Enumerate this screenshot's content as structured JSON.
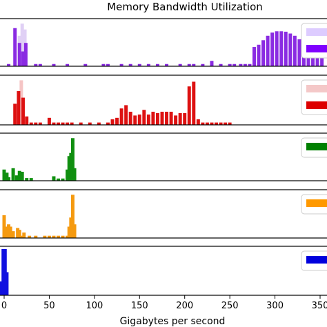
{
  "chart_data": {
    "type": "bar",
    "title": "Memory Bandwidth Utilization",
    "xlabel": "Gigabytes per second",
    "ylabel": "",
    "xlim": [
      -5,
      355
    ],
    "xticks": [
      {
        "value": 0,
        "label": "0"
      },
      {
        "value": 50,
        "label": "50"
      },
      {
        "value": 100,
        "label": "100"
      },
      {
        "value": 150,
        "label": "150"
      },
      {
        "value": 200,
        "label": "200"
      },
      {
        "value": 250,
        "label": "250"
      },
      {
        "value": 300,
        "label": "300"
      },
      {
        "value": 350,
        "label": "350"
      }
    ],
    "grid": false,
    "legend_position": "right",
    "bar_width": 3.8,
    "panels": [
      {
        "ymax": 1.0,
        "legend_colors": [
          "#ddccff",
          "#8000ff"
        ],
        "series": [
          {
            "color": "#e0d0f5",
            "x": [
              17,
              20,
              23
            ],
            "values": [
              0.68,
              0.95,
              0.82
            ]
          },
          {
            "color": "#8a2be2",
            "x": [
              5,
              12,
              17,
              21,
              24,
              35,
              40,
              55,
              70,
              90,
              110,
              115,
              130,
              140,
              150,
              160,
              170,
              180,
              195,
              205,
              210,
              220,
              230,
              240,
              250,
              255,
              262,
              267,
              272,
              277,
              282,
              287,
              292,
              297,
              302,
              307,
              312,
              317,
              322,
              327,
              332,
              337,
              342,
              347,
              352
            ],
            "values": [
              0.05,
              0.85,
              0.52,
              0.33,
              0.52,
              0.05,
              0.05,
              0.05,
              0.05,
              0.05,
              0.05,
              0.05,
              0.05,
              0.05,
              0.05,
              0.05,
              0.05,
              0.05,
              0.05,
              0.05,
              0.05,
              0.05,
              0.12,
              0.05,
              0.05,
              0.05,
              0.05,
              0.05,
              0.05,
              0.43,
              0.48,
              0.58,
              0.68,
              0.75,
              0.78,
              0.78,
              0.77,
              0.73,
              0.68,
              0.6,
              0.52,
              0.45,
              0.38,
              0.3,
              0.2
            ]
          }
        ]
      },
      {
        "ymax": 1.0,
        "legend_colors": [
          "#f4c8c8",
          "#dd0000"
        ],
        "series": [
          {
            "color": "#f5c5c5",
            "x": [
              19
            ],
            "values": [
              0.95
            ]
          },
          {
            "color": "#dd1111",
            "x": [
              12,
              16,
              21,
              25,
              30,
              35,
              40,
              50,
              55,
              60,
              65,
              70,
              75,
              85,
              95,
              105,
              115,
              120,
              125,
              130,
              135,
              140,
              145,
              150,
              155,
              160,
              165,
              170,
              175,
              180,
              185,
              190,
              195,
              200,
              205,
              210,
              215,
              220,
              225,
              230,
              235,
              240,
              245,
              250
            ],
            "values": [
              0.45,
              0.72,
              0.58,
              0.18,
              0.05,
              0.05,
              0.05,
              0.15,
              0.05,
              0.05,
              0.05,
              0.05,
              0.05,
              0.05,
              0.05,
              0.05,
              0.05,
              0.12,
              0.15,
              0.35,
              0.42,
              0.28,
              0.2,
              0.22,
              0.32,
              0.22,
              0.28,
              0.25,
              0.28,
              0.28,
              0.28,
              0.2,
              0.25,
              0.25,
              0.82,
              0.92,
              0.12,
              0.05,
              0.05,
              0.05,
              0.05,
              0.05,
              0.05,
              0.05
            ]
          }
        ]
      },
      {
        "ymax": 1.0,
        "legend_colors": [
          "#008000"
        ],
        "series": [
          {
            "color": "#108f10",
            "x": [
              0,
              3,
              5,
              10,
              14,
              17,
              20,
              25,
              30,
              55,
              60,
              65,
              70,
              72,
              74,
              76,
              78
            ],
            "values": [
              0.25,
              0.18,
              0.08,
              0.28,
              0.12,
              0.22,
              0.2,
              0.06,
              0.06,
              0.1,
              0.05,
              0.05,
              0.25,
              0.55,
              0.62,
              0.95,
              0.28
            ]
          }
        ]
      },
      {
        "ymax": 1.0,
        "legend_colors": [
          "#ff9900"
        ],
        "series": [
          {
            "color": "#f59a10",
            "x": [
              0,
              2,
              5,
              7,
              10,
              15,
              17,
              20,
              22,
              28,
              35,
              45,
              50,
              55,
              60,
              65,
              70,
              72,
              74,
              76,
              78
            ],
            "values": [
              0.5,
              0.25,
              0.3,
              0.25,
              0.15,
              0.22,
              0.18,
              0.05,
              0.12,
              0.05,
              0.05,
              0.05,
              0.05,
              0.05,
              0.05,
              0.05,
              0.05,
              0.25,
              0.45,
              0.95,
              0.3
            ]
          }
        ]
      },
      {
        "ymax": 1.0,
        "legend_colors": [
          "#0000dd"
        ],
        "series": [
          {
            "color": "#1010e0",
            "x": [
              -3,
              -1,
              1,
              3
            ],
            "values": [
              0.3,
              1.0,
              1.0,
              0.5
            ]
          }
        ]
      }
    ]
  }
}
